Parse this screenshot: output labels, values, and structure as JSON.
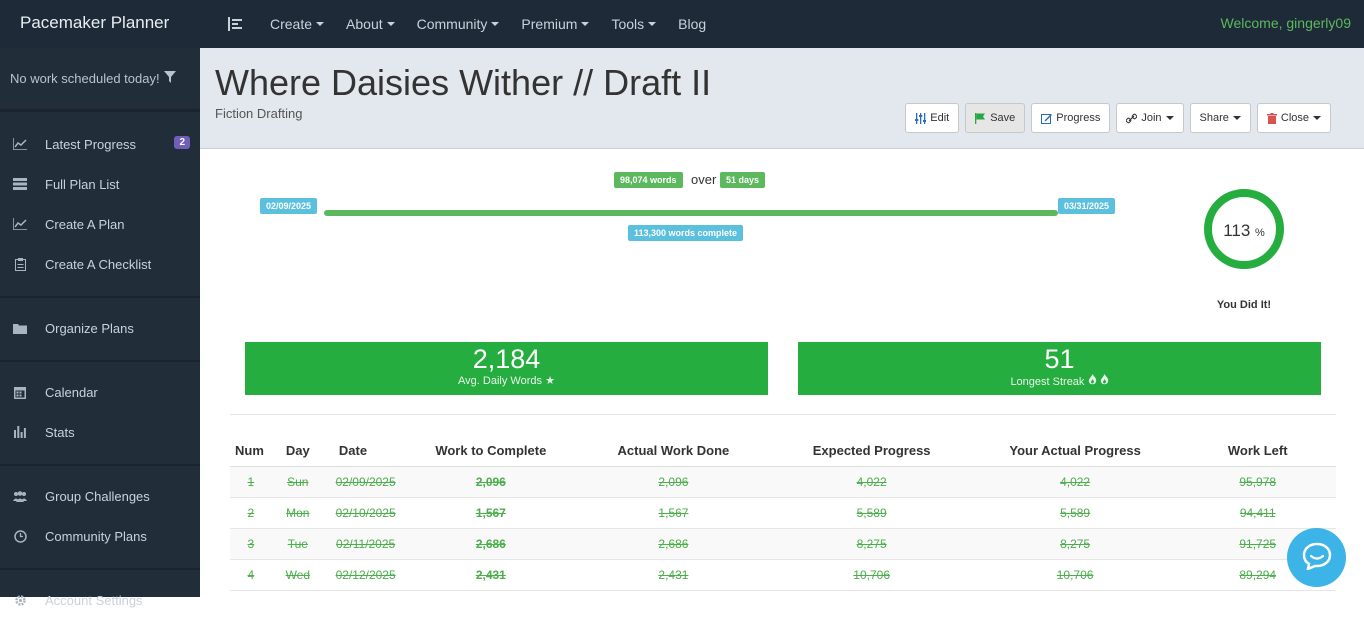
{
  "brand": "Pacemaker Planner",
  "nav": {
    "items": [
      "Create",
      "About",
      "Community",
      "Premium",
      "Tools",
      "Blog"
    ],
    "welcome": "Welcome, gingerly09"
  },
  "sidebar": {
    "status": "No work scheduled today!",
    "items": [
      {
        "label": "Latest Progress",
        "icon": "chart-icon",
        "badge": "2"
      },
      {
        "label": "Full Plan List",
        "icon": "list-icon"
      },
      {
        "label": "Create A Plan",
        "icon": "chart-icon"
      },
      {
        "label": "Create A Checklist",
        "icon": "clipboard-icon"
      },
      {
        "label": "Organize Plans",
        "icon": "folder-icon"
      },
      {
        "label": "Calendar",
        "icon": "calendar-icon"
      },
      {
        "label": "Stats",
        "icon": "bar-chart-icon"
      },
      {
        "label": "Group Challenges",
        "icon": "group-icon"
      },
      {
        "label": "Community Plans",
        "icon": "clock-icon"
      },
      {
        "label": "Account Settings",
        "icon": "gear-icon"
      }
    ]
  },
  "header": {
    "title": "Where Daisies Wither // Draft II",
    "subtitle": "Fiction Drafting",
    "buttons": [
      "Edit",
      "Save",
      "Progress",
      "Join",
      "Share",
      "Close"
    ]
  },
  "progress": {
    "words_pill": "98,074 words",
    "over": "over",
    "days_pill": "51 days",
    "start_date": "02/09/2025",
    "end_date": "03/31/2025",
    "complete_pill": "113,300 words complete",
    "percent": "113",
    "percent_sign": "%",
    "percent_value": 113,
    "done_text": "You Did It!"
  },
  "stats": {
    "avg_value": "2,184",
    "avg_label": "Avg. Daily Words",
    "streak_value": "51",
    "streak_label": "Longest Streak"
  },
  "table": {
    "headers": [
      "Num",
      "Day",
      "Date",
      "Work to Complete",
      "Actual Work Done",
      "Expected Progress",
      "Your Actual Progress",
      "Work Left"
    ],
    "rows": [
      [
        "1",
        "Sun",
        "02/09/2025",
        "2,096",
        "2,096",
        "4,022",
        "4,022",
        "95,978"
      ],
      [
        "2",
        "Mon",
        "02/10/2025",
        "1,567",
        "1,567",
        "5,589",
        "5,589",
        "94,411"
      ],
      [
        "3",
        "Tue",
        "02/11/2025",
        "2,686",
        "2,686",
        "8,275",
        "8,275",
        "91,725"
      ],
      [
        "4",
        "Wed",
        "02/12/2025",
        "2,431",
        "2,431",
        "10,706",
        "10,706",
        "89,294"
      ]
    ]
  },
  "colors": {
    "accent_green": "#26ad3f",
    "pill_blue": "#5bc0de",
    "badge_purple": "#6f5fb8",
    "sidebar_bg": "#222d3a"
  }
}
